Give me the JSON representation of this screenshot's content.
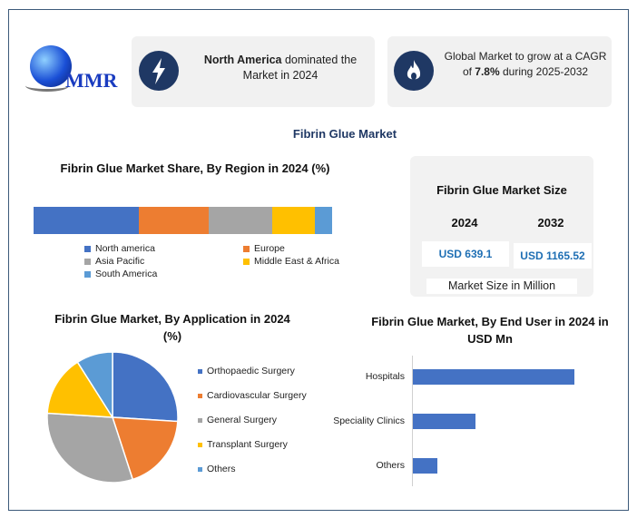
{
  "logo": {
    "text": "MMR"
  },
  "cards": [
    {
      "bold": "North America",
      "rest": " dominated the Market in 2024",
      "icon": "lightning-icon"
    },
    {
      "pre": "Global Market to grow at a CAGR of ",
      "bold": "7.8%",
      "rest": " during 2025-2032",
      "icon": "flame-icon"
    }
  ],
  "main_title": "Fibrin Glue Market",
  "size_panel": {
    "title": "Fibrin Glue Market Size",
    "years": [
      "2024",
      "2032"
    ],
    "values": [
      "USD 639.1",
      "USD 1165.52"
    ],
    "footer": "Market Size in Million"
  },
  "colors": {
    "blue": "#4472c4",
    "orange": "#ed7d31",
    "gray": "#a5a5a5",
    "yellow": "#ffc000",
    "lightblue": "#5b9bd5",
    "navy": "#1f3864"
  },
  "chart_data": [
    {
      "type": "bar",
      "stacked": true,
      "title": "Fibrin Glue Market Share, By Region in 2024 (%)",
      "categories": [
        "North america",
        "Europe",
        "Asia Pacific",
        "Middle East & Africa",
        "South America"
      ],
      "values": [
        35.3,
        23.4,
        21.3,
        14.3,
        5.8
      ],
      "legend": "bottom"
    },
    {
      "type": "pie",
      "title": "Fibrin Glue Market, By Application in 2024 (%)",
      "categories": [
        "Orthopaedic Surgery",
        "Cardiovascular Surgery",
        "General Surgery",
        "Transplant Surgery",
        "Others"
      ],
      "values": [
        26,
        19,
        31,
        15,
        9
      ],
      "legend": "right"
    },
    {
      "type": "bar",
      "orientation": "horizontal",
      "title": "Fibrin Glue Market, By End User in 2024 in USD Mn",
      "categories": [
        "Hospitals",
        "Speciality Clinics",
        "Others"
      ],
      "values": [
        178,
        69,
        27
      ]
    }
  ]
}
